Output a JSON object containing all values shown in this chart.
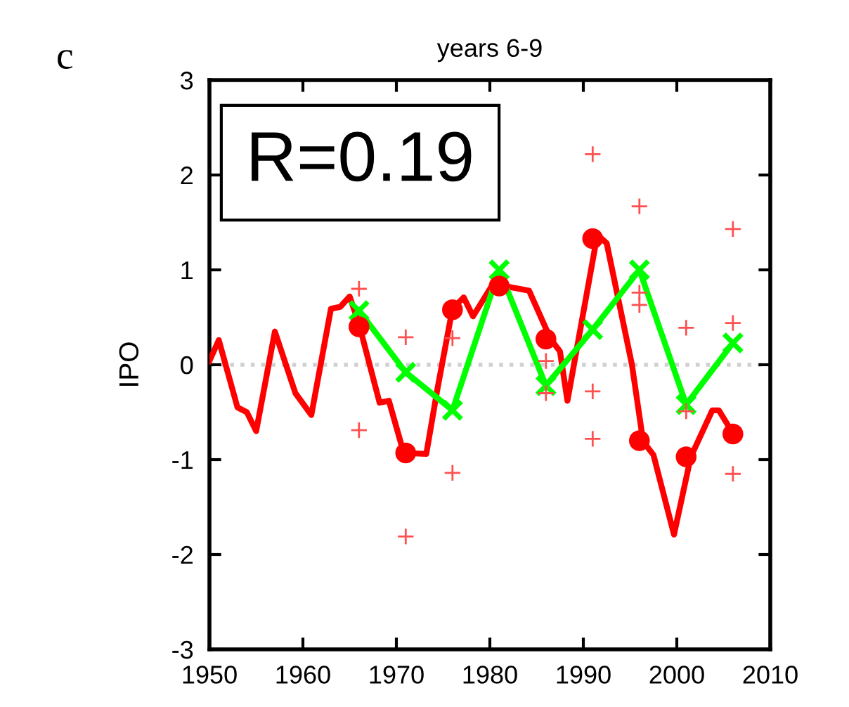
{
  "chart_data": {
    "type": "line",
    "title": "years 6-9",
    "ylabel": "IPO",
    "annotations": [
      "c",
      "R=0.19"
    ],
    "xlim": [
      1950,
      2010
    ],
    "xticks": [
      1950,
      1960,
      1970,
      1980,
      1990,
      2000,
      2010
    ],
    "ylim": [
      -3,
      3
    ],
    "yticks": [
      -3,
      -2,
      -1,
      0,
      1,
      2,
      3
    ],
    "grid": false,
    "legend": false,
    "ref_lines": [
      {
        "axis": "y",
        "value": 0,
        "color": "#d0d0d0",
        "line_style": "dotted"
      }
    ],
    "series": [
      {
        "color": "#ff0000",
        "marker": "none",
        "line_style": "solid",
        "x": [
          1950,
          1951,
          1953,
          1954,
          1955,
          1957,
          1959.2,
          1960.9,
          1963,
          1964,
          1965,
          1966,
          1968.2,
          1969.2,
          1970.7,
          1971,
          1973.2,
          1974.4,
          1976,
          1977.2,
          1978.2,
          1980.7,
          1981.5,
          1984.2,
          1986.5,
          1987.5,
          1988.3,
          1991.5,
          1992.5,
          1995.2,
          1996.4,
          1997.5,
          1999.7,
          2001.5,
          2003.8,
          2004.5,
          2005.8,
          2006.5
        ],
        "values": [
          0.04,
          0.26,
          -0.45,
          -0.5,
          -0.7,
          0.35,
          -0.3,
          -0.53,
          0.59,
          0.61,
          0.72,
          0.43,
          -0.4,
          -0.38,
          -0.9,
          -0.93,
          -0.94,
          -0.25,
          0.59,
          0.71,
          0.51,
          0.91,
          0.83,
          0.78,
          0.27,
          0.14,
          -0.38,
          1.37,
          1.28,
          0,
          -0.81,
          -0.95,
          -1.79,
          -0.97,
          -0.48,
          -0.48,
          -0.69,
          -0.74
        ]
      },
      {
        "type": "scatter",
        "color": "#ff0000",
        "marker": "circle",
        "x": [
          1966,
          1971,
          1976,
          1981,
          1986,
          1991,
          1996,
          2001,
          2006
        ],
        "values": [
          0.4,
          -0.93,
          0.58,
          0.83,
          0.27,
          1.33,
          -0.8,
          -0.97,
          -0.73
        ]
      },
      {
        "color": "#00ff00",
        "marker": "cross",
        "line_style": "solid",
        "x": [
          1966,
          1971,
          1976,
          1981,
          1986,
          1991,
          1996,
          2001,
          2006
        ],
        "values": [
          0.57,
          -0.08,
          -0.48,
          1.0,
          -0.22,
          0.37,
          1.0,
          -0.42,
          0.23
        ]
      },
      {
        "type": "scatter",
        "color": "#ff5050",
        "marker": "plus",
        "x": [
          1966,
          1966,
          1971,
          1971,
          1976,
          1976,
          1986,
          1986,
          1991,
          1991,
          1991,
          1996,
          1996,
          1996,
          2001,
          2001,
          2006,
          2006,
          2006
        ],
        "values": [
          0.8,
          -0.69,
          0.29,
          -1.81,
          0.28,
          -1.14,
          0.04,
          -0.3,
          2.22,
          -0.28,
          -0.78,
          1.67,
          0.76,
          0.63,
          0.39,
          -0.49,
          1.43,
          0.44,
          -1.15
        ]
      }
    ]
  }
}
